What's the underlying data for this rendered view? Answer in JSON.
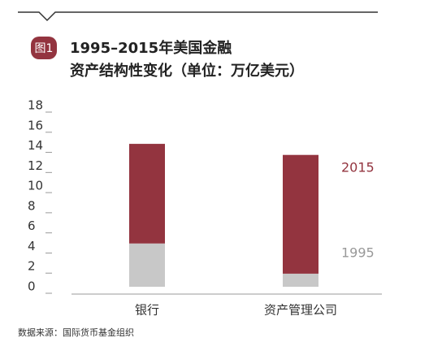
{
  "chart_data": {
    "type": "stacked_bar",
    "figure_label": "图1",
    "title": "1995–2015年美国金融",
    "subtitle": "资产结构性变化（单位：万亿美元）",
    "categories": [
      "银行",
      "资产管理公司"
    ],
    "series": [
      {
        "name": "1995",
        "color": "#c8c8c8",
        "values": [
          4.3,
          1.3
        ]
      },
      {
        "name": "2015",
        "color": "#93343f",
        "values": [
          9.9,
          11.8
        ]
      }
    ],
    "ylim": [
      0,
      18
    ],
    "yticks": [
      0,
      2,
      4,
      6,
      8,
      10,
      12,
      14,
      16,
      18
    ],
    "source": "数据来源：国际货币基金组织"
  }
}
